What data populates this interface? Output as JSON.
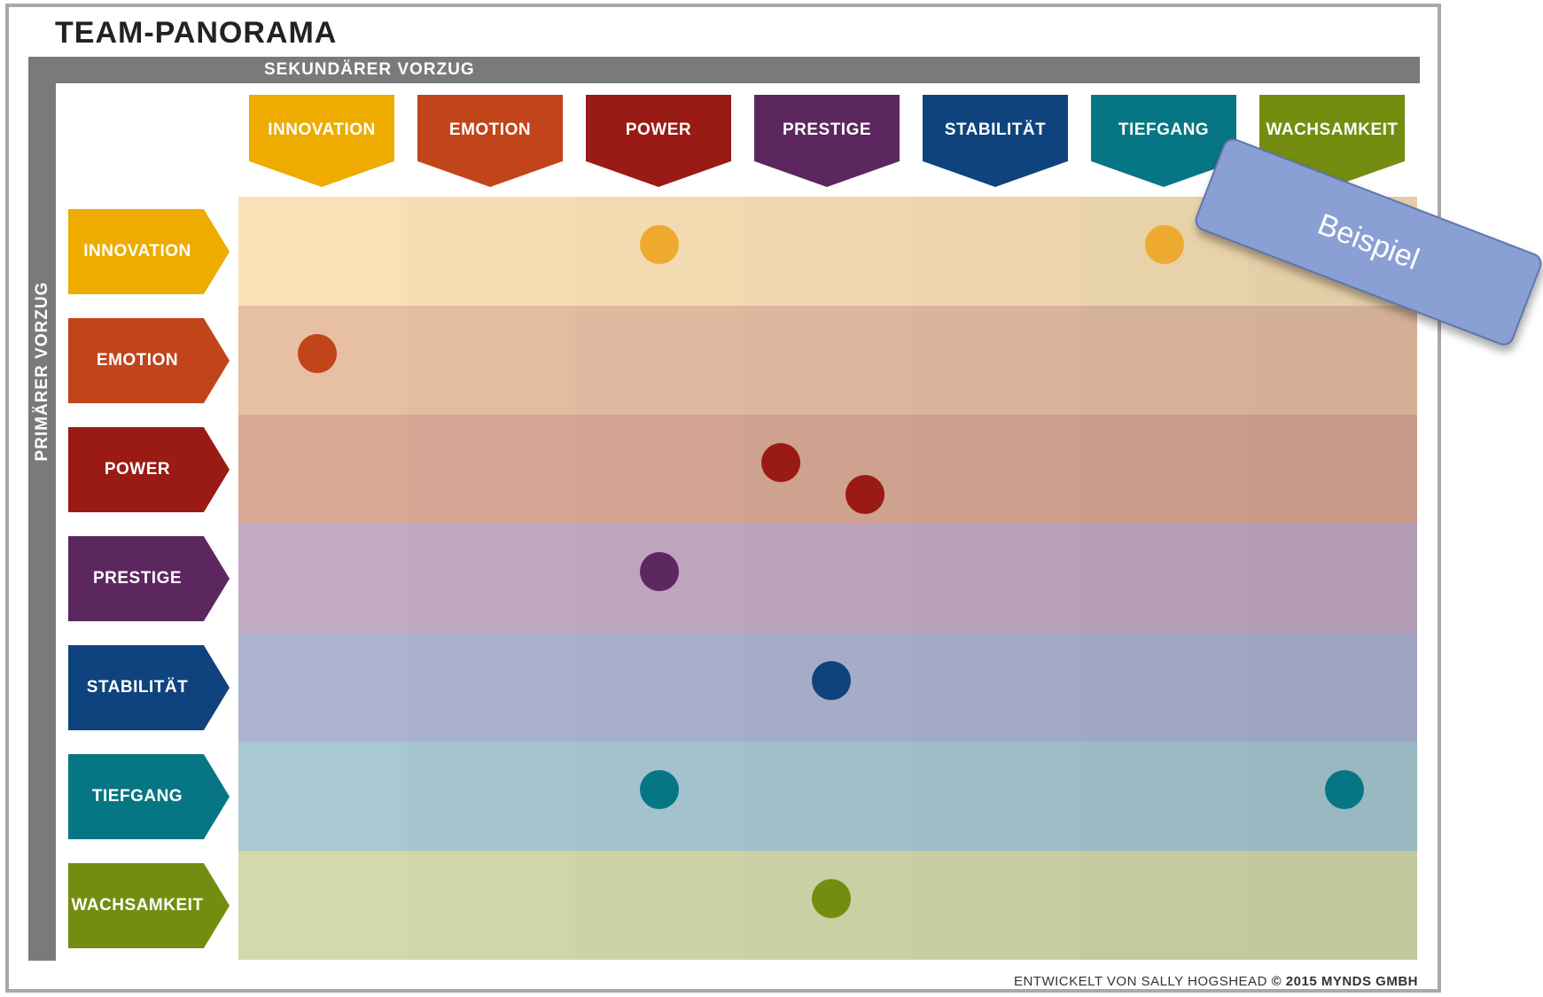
{
  "title": "TEAM-PANORAMA",
  "top_axis_label": "SEKUNDÄRER VORZUG",
  "left_axis_label": "PRIMÄRER VORZUG",
  "categories": [
    {
      "label": "INNOVATION",
      "color": "#eeab00",
      "band_color": "#f9e1b7"
    },
    {
      "label": "EMOTION",
      "color": "#c2441b",
      "band_color": "#e6bfa4"
    },
    {
      "label": "POWER",
      "color": "#9a1a16",
      "band_color": "#d8a895"
    },
    {
      "label": "PRESTIGE",
      "color": "#5c275f",
      "band_color": "#c3aac3"
    },
    {
      "label": "STABILITÄT",
      "color": "#0e437d",
      "band_color": "#acb4d1"
    },
    {
      "label": "TIEFGANG",
      "color": "#077684",
      "band_color": "#a8c8d3"
    },
    {
      "label": "WACHSAMKEIT",
      "color": "#748d10",
      "band_color": "#d2d9aa"
    }
  ],
  "dots": [
    {
      "primary": 0,
      "secondary": 2.5
    },
    {
      "primary": 0,
      "secondary": 5.5
    },
    {
      "primary": 1,
      "secondary": 0.47
    },
    {
      "primary": 2,
      "secondary": 3.22
    },
    {
      "primary": 2,
      "secondary": 3.72,
      "offset": 0.3
    },
    {
      "primary": 3,
      "secondary": 2.5
    },
    {
      "primary": 4,
      "secondary": 3.52
    },
    {
      "primary": 5,
      "secondary": 2.5
    },
    {
      "primary": 5,
      "secondary": 6.57
    },
    {
      "primary": 6,
      "secondary": 3.52
    }
  ],
  "credit": {
    "text": "ENTWICKELT VON SALLY HOGSHEAD",
    "copyright": "© 2015 MYNDS GMBH"
  },
  "example_label": "Beispiel"
}
